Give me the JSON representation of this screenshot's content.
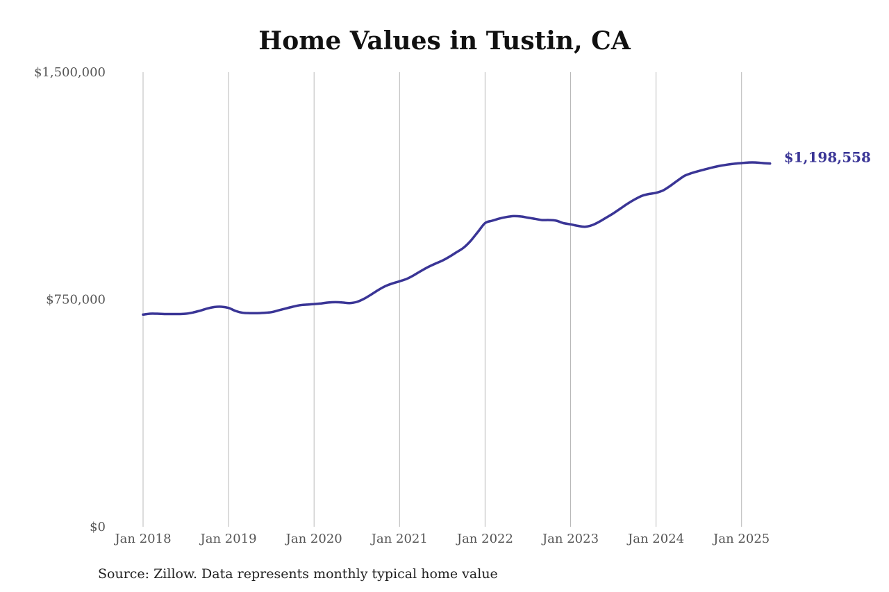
{
  "chart_data": {
    "type": "line",
    "title": "Home Values in Tustin, CA",
    "source": "Source: Zillow. Data represents monthly typical home value",
    "xlabel": "",
    "ylabel": "",
    "ylim": [
      0,
      1500000
    ],
    "xlim": [
      "2018-01",
      "2025-05"
    ],
    "y_ticks": [
      {
        "value": 0,
        "label": "$0"
      },
      {
        "value": 750000,
        "label": "$750,000"
      },
      {
        "value": 1500000,
        "label": "$1,500,000"
      }
    ],
    "x_ticks": [
      {
        "date": "2018-01",
        "label": "Jan 2018"
      },
      {
        "date": "2019-01",
        "label": "Jan 2019"
      },
      {
        "date": "2020-01",
        "label": "Jan 2020"
      },
      {
        "date": "2021-01",
        "label": "Jan 2021"
      },
      {
        "date": "2022-01",
        "label": "Jan 2022"
      },
      {
        "date": "2023-01",
        "label": "Jan 2023"
      },
      {
        "date": "2024-01",
        "label": "Jan 2024"
      },
      {
        "date": "2025-01",
        "label": "Jan 2025"
      }
    ],
    "grid": "vertical",
    "line_color": "#3a3596",
    "end_label": "$1,198,558",
    "series": [
      {
        "x": [
          "2018-01",
          "2018-02",
          "2018-03",
          "2018-04",
          "2018-05",
          "2018-06",
          "2018-07",
          "2018-08",
          "2018-09",
          "2018-10",
          "2018-11",
          "2018-12",
          "2019-01",
          "2019-02",
          "2019-03",
          "2019-04",
          "2019-05",
          "2019-06",
          "2019-07",
          "2019-08",
          "2019-09",
          "2019-10",
          "2019-11",
          "2019-12",
          "2020-01",
          "2020-02",
          "2020-03",
          "2020-04",
          "2020-05",
          "2020-06",
          "2020-07",
          "2020-08",
          "2020-09",
          "2020-10",
          "2020-11",
          "2020-12",
          "2021-01",
          "2021-02",
          "2021-03",
          "2021-04",
          "2021-05",
          "2021-06",
          "2021-07",
          "2021-08",
          "2021-09",
          "2021-10",
          "2021-11",
          "2021-12",
          "2022-01",
          "2022-02",
          "2022-03",
          "2022-04",
          "2022-05",
          "2022-06",
          "2022-07",
          "2022-08",
          "2022-09",
          "2022-10",
          "2022-11",
          "2022-12",
          "2023-01",
          "2023-02",
          "2023-03",
          "2023-04",
          "2023-05",
          "2023-06",
          "2023-07",
          "2023-08",
          "2023-09",
          "2023-10",
          "2023-11",
          "2023-12",
          "2024-01",
          "2024-02",
          "2024-03",
          "2024-04",
          "2024-05",
          "2024-06",
          "2024-07",
          "2024-08",
          "2024-09",
          "2024-10",
          "2024-11",
          "2024-12",
          "2025-01",
          "2025-02",
          "2025-03",
          "2025-04",
          "2025-05"
        ],
        "values": [
          700000,
          703000,
          703000,
          702000,
          702000,
          702000,
          703000,
          707000,
          713000,
          720000,
          725000,
          726000,
          722000,
          712000,
          706000,
          705000,
          705000,
          706000,
          708000,
          714000,
          720000,
          726000,
          731000,
          733000,
          735000,
          737000,
          740000,
          741000,
          740000,
          738000,
          742000,
          752000,
          766000,
          781000,
          794000,
          803000,
          810000,
          818000,
          830000,
          844000,
          857000,
          868000,
          878000,
          891000,
          906000,
          921000,
          944000,
          973000,
          1002000,
          1010000,
          1017000,
          1022000,
          1025000,
          1024000,
          1020000,
          1016000,
          1012000,
          1012000,
          1010000,
          1002000,
          998000,
          993000,
          990000,
          995000,
          1006000,
          1020000,
          1034000,
          1050000,
          1066000,
          1080000,
          1092000,
          1098000,
          1102000,
          1110000,
          1125000,
          1142000,
          1158000,
          1167000,
          1174000,
          1180000,
          1186000,
          1191000,
          1195000,
          1198000,
          1200000,
          1202000,
          1202000,
          1200000,
          1198558
        ]
      }
    ]
  }
}
